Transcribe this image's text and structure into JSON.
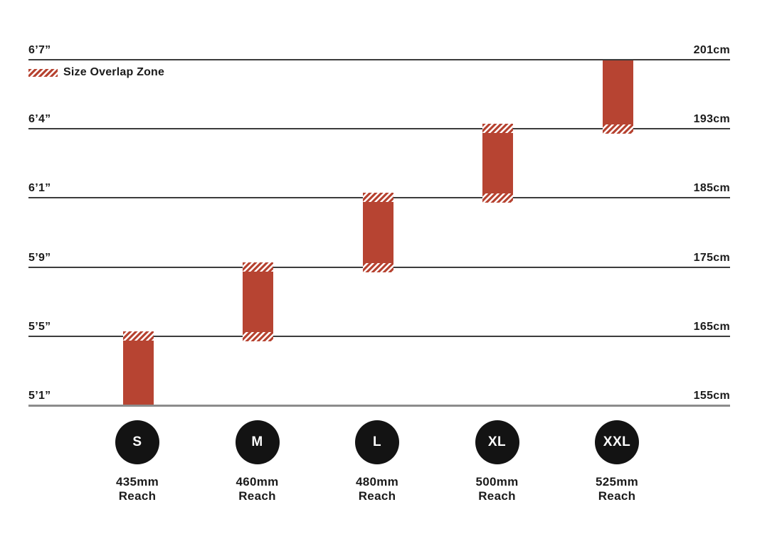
{
  "legend": {
    "label": "Size Overlap Zone"
  },
  "colors": {
    "bar_red": "#B74432",
    "grid_line": "#3C3C3C",
    "base_line": "#8C8C8C",
    "badge_black": "#131313",
    "text": "#1B1B1B",
    "badge_text": "#FFFFFF"
  },
  "chart_data": {
    "type": "bar",
    "subtype": "floating-range-columns",
    "title": "",
    "legend_label": "Size Overlap Zone",
    "axis_left_unit": "feet/inches",
    "axis_right_unit": "cm",
    "axis_left_ticks": [
      "6’7”",
      "6’4”",
      "6’1”",
      "5’9”",
      "5’5”",
      "5’1”"
    ],
    "axis_right_ticks": [
      "201cm",
      "193cm",
      "185cm",
      "175cm",
      "165cm",
      "155cm"
    ],
    "categories": [
      "S",
      "M",
      "L",
      "XL",
      "XXL"
    ],
    "series": [
      {
        "size": "S",
        "reach_mm": 435,
        "reach_label": "435mm",
        "reach_sub": "Reach",
        "height_range_imperial": "5’1”–5’5”",
        "height_range_metric": "155cm–165cm",
        "top_tick": "165cm",
        "bottom_tick": "155cm",
        "overlap_top": true,
        "overlap_bottom": false
      },
      {
        "size": "M",
        "reach_mm": 460,
        "reach_label": "460mm",
        "reach_sub": "Reach",
        "height_range_imperial": "5’5”–5’9”",
        "height_range_metric": "165cm–175cm",
        "top_tick": "175cm",
        "bottom_tick": "165cm",
        "overlap_top": true,
        "overlap_bottom": true
      },
      {
        "size": "L",
        "reach_mm": 480,
        "reach_label": "480mm",
        "reach_sub": "Reach",
        "height_range_imperial": "5’9”–6’1”",
        "height_range_metric": "175cm–185cm",
        "top_tick": "185cm",
        "bottom_tick": "175cm",
        "overlap_top": true,
        "overlap_bottom": true
      },
      {
        "size": "XL",
        "reach_mm": 500,
        "reach_label": "500mm",
        "reach_sub": "Reach",
        "height_range_imperial": "6’1”–6’4”",
        "height_range_metric": "185cm–193cm",
        "top_tick": "193cm",
        "bottom_tick": "185cm",
        "overlap_top": true,
        "overlap_bottom": true
      },
      {
        "size": "XXL",
        "reach_mm": 525,
        "reach_label": "525mm",
        "reach_sub": "Reach",
        "height_range_imperial": "6’4”–6’7”",
        "height_range_metric": "193cm–201cm",
        "top_tick": "201cm",
        "bottom_tick": "193cm",
        "overlap_top": false,
        "overlap_bottom": true
      }
    ]
  }
}
